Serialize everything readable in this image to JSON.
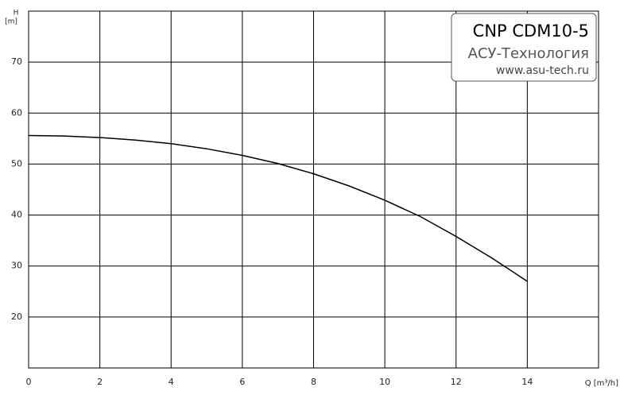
{
  "chart_data": {
    "type": "line",
    "title": "CNP CDM10-5",
    "subtitle": "АСУ-Технология",
    "annotation": "www.asu-tech.ru",
    "y_label": "H",
    "y_unit": "[m]",
    "x_label": "Q [m³/h]",
    "x": [
      0,
      1,
      2,
      3,
      4,
      5,
      6,
      7,
      8,
      9,
      10,
      11,
      12,
      13,
      14
    ],
    "series": [
      {
        "name": "CNP CDM10-5",
        "color": "#000000",
        "values": [
          55.6,
          55.5,
          55.2,
          54.7,
          54.0,
          53.0,
          51.7,
          50.1,
          48.1,
          45.7,
          42.9,
          39.7,
          35.8,
          31.6,
          27.0
        ]
      }
    ],
    "xlim": [
      0,
      16
    ],
    "xticks": [
      0,
      2,
      4,
      6,
      8,
      10,
      12,
      14
    ],
    "ylim": [
      10,
      80
    ],
    "yticks": [
      20,
      30,
      40,
      50,
      60,
      70
    ],
    "grid": true
  }
}
